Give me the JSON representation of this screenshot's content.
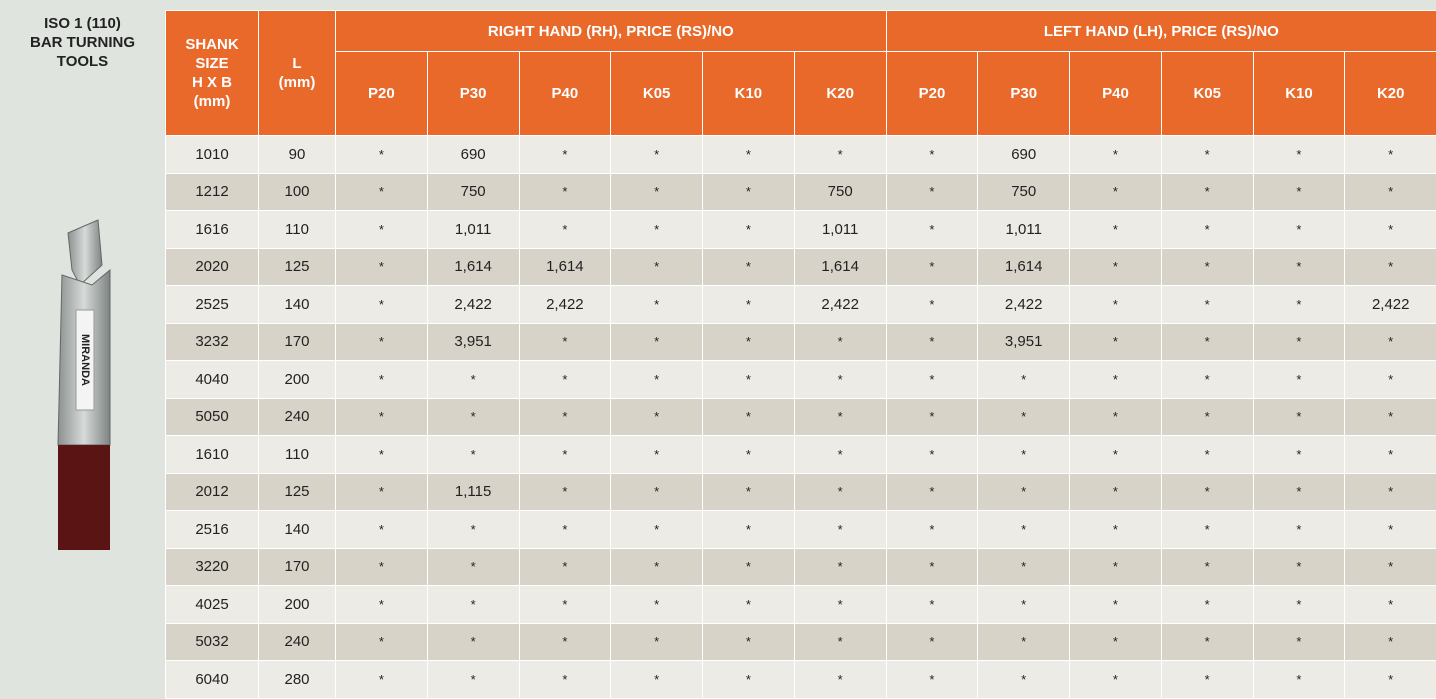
{
  "title": {
    "lines": [
      "ISO 1 (110)",
      "BAR TURNING",
      "TOOLS"
    ]
  },
  "tool_image": {
    "label": "MIRANDA"
  },
  "table": {
    "header": {
      "shank": [
        "SHANK",
        "SIZE",
        "H X B",
        "(mm)"
      ],
      "l": [
        "L",
        "(mm)"
      ],
      "groups": [
        {
          "title": "RIGHT HAND (RH), PRICE (RS)/NO",
          "grades": [
            "P20",
            "P30",
            "P40",
            "K05",
            "K10",
            "K20"
          ]
        },
        {
          "title": "LEFT HAND (LH), PRICE (RS)/NO",
          "grades": [
            "P20",
            "P30",
            "P40",
            "K05",
            "K10",
            "K20"
          ]
        }
      ]
    },
    "rows": [
      [
        "1010",
        "90",
        "*",
        "690",
        "*",
        "*",
        "*",
        "*",
        "*",
        "690",
        "*",
        "*",
        "*",
        "*"
      ],
      [
        "1212",
        "100",
        "*",
        "750",
        "*",
        "*",
        "*",
        "750",
        "*",
        "750",
        "*",
        "*",
        "*",
        "*"
      ],
      [
        "1616",
        "110",
        "*",
        "1,011",
        "*",
        "*",
        "*",
        "1,011",
        "*",
        "1,011",
        "*",
        "*",
        "*",
        "*"
      ],
      [
        "2020",
        "125",
        "*",
        "1,614",
        "1,614",
        "*",
        "*",
        "1,614",
        "*",
        "1,614",
        "*",
        "*",
        "*",
        "*"
      ],
      [
        "2525",
        "140",
        "*",
        "2,422",
        "2,422",
        "*",
        "*",
        "2,422",
        "*",
        "2,422",
        "*",
        "*",
        "*",
        "2,422"
      ],
      [
        "3232",
        "170",
        "*",
        "3,951",
        "*",
        "*",
        "*",
        "*",
        "*",
        "3,951",
        "*",
        "*",
        "*",
        "*"
      ],
      [
        "4040",
        "200",
        "*",
        "*",
        "*",
        "*",
        "*",
        "*",
        "*",
        "*",
        "*",
        "*",
        "*",
        "*"
      ],
      [
        "5050",
        "240",
        "*",
        "*",
        "*",
        "*",
        "*",
        "*",
        "*",
        "*",
        "*",
        "*",
        "*",
        "*"
      ],
      [
        "1610",
        "110",
        "*",
        "*",
        "*",
        "*",
        "*",
        "*",
        "*",
        "*",
        "*",
        "*",
        "*",
        "*"
      ],
      [
        "2012",
        "125",
        "*",
        "1,115",
        "*",
        "*",
        "*",
        "*",
        "*",
        "*",
        "*",
        "*",
        "*",
        "*"
      ],
      [
        "2516",
        "140",
        "*",
        "*",
        "*",
        "*",
        "*",
        "*",
        "*",
        "*",
        "*",
        "*",
        "*",
        "*"
      ],
      [
        "3220",
        "170",
        "*",
        "*",
        "*",
        "*",
        "*",
        "*",
        "*",
        "*",
        "*",
        "*",
        "*",
        "*"
      ],
      [
        "4025",
        "200",
        "*",
        "*",
        "*",
        "*",
        "*",
        "*",
        "*",
        "*",
        "*",
        "*",
        "*",
        "*"
      ],
      [
        "5032",
        "240",
        "*",
        "*",
        "*",
        "*",
        "*",
        "*",
        "*",
        "*",
        "*",
        "*",
        "*",
        "*"
      ],
      [
        "6040",
        "280",
        "*",
        "*",
        "*",
        "*",
        "*",
        "*",
        "*",
        "*",
        "*",
        "*",
        "*",
        "*"
      ]
    ]
  }
}
